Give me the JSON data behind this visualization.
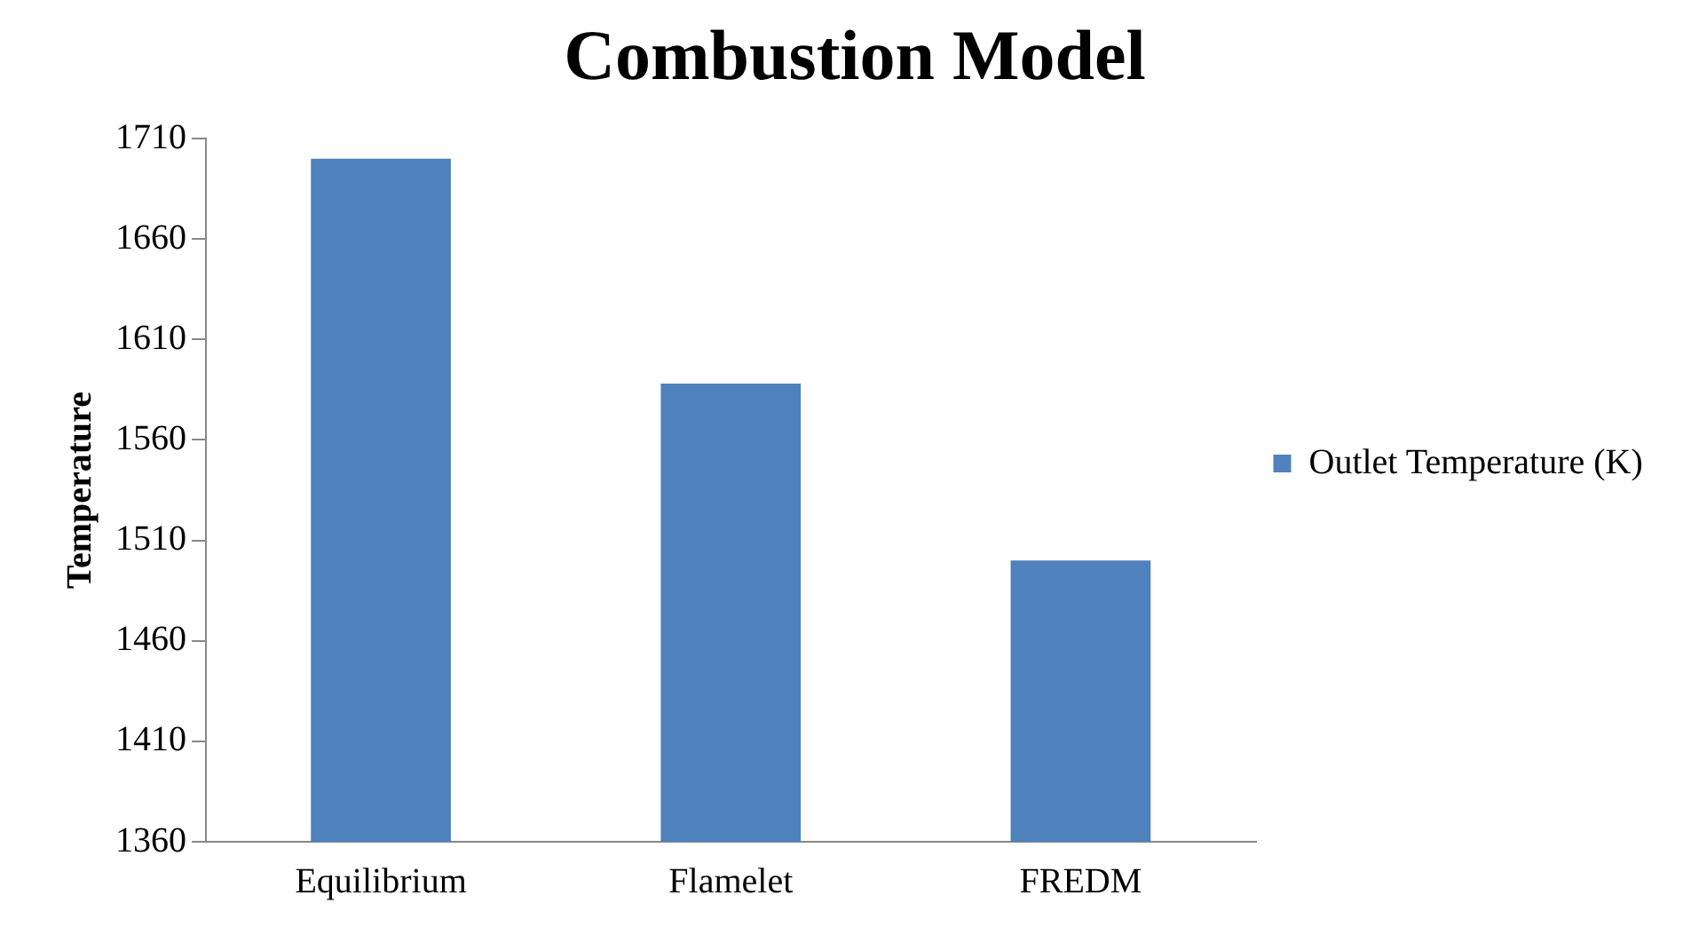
{
  "chart_data": {
    "type": "bar",
    "title": "Combustion Model",
    "ylabel": "Temperature",
    "categories": [
      "Equilibrium",
      "Flamelet",
      "FREDM"
    ],
    "series": [
      {
        "name": "Outlet Temperature (K)",
        "color": "#4f81bd",
        "values": [
          1700,
          1588,
          1500
        ]
      }
    ],
    "ylim": [
      1360,
      1710
    ],
    "yticks": [
      1360,
      1410,
      1460,
      1510,
      1560,
      1610,
      1660,
      1710
    ],
    "grid": false,
    "legend": "right"
  }
}
